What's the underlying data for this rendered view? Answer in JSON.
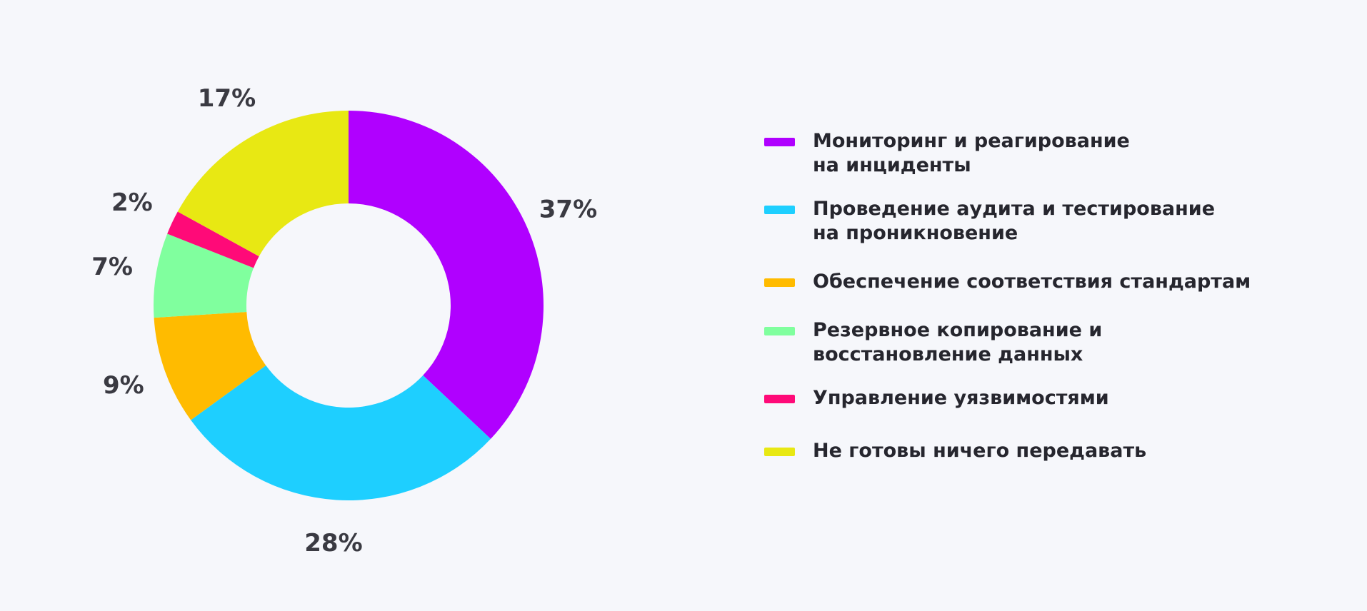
{
  "chart_data": {
    "type": "pie",
    "donut": true,
    "title": "",
    "legend_position": "right",
    "slices": [
      {
        "label": "Мониторинг и реагирование\nна инциденты",
        "value": 37,
        "value_label": "37%",
        "color": "#b000ff"
      },
      {
        "label": "Проведение аудита и тестирование\nна проникновение",
        "value": 28,
        "value_label": "28%",
        "color": "#1ecfff"
      },
      {
        "label": "Обеспечение соответствия стандартам",
        "value": 9,
        "value_label": "9%",
        "color": "#ffbb00"
      },
      {
        "label": "Резервное копирование и\nвосстановление данных",
        "value": 7,
        "value_label": "7%",
        "color": "#80ff9e"
      },
      {
        "label": "Управление уязвимостями",
        "value": 2,
        "value_label": "2%",
        "color": "#ff0a78"
      },
      {
        "label": "Не готовы ничего передавать",
        "value": 17,
        "value_label": "17%",
        "color": "#e8e813"
      }
    ]
  }
}
